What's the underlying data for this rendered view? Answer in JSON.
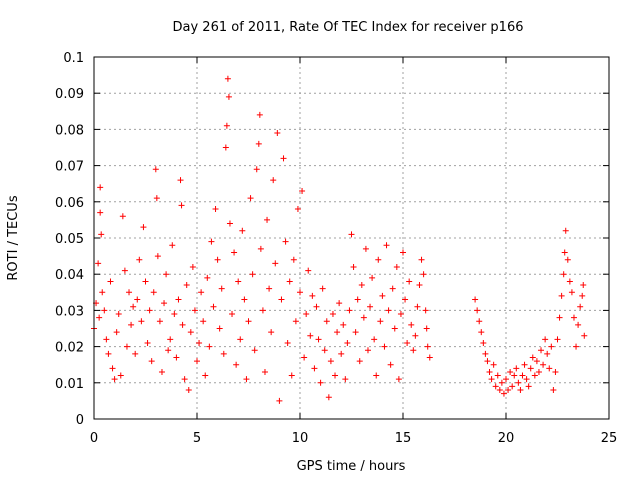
{
  "chart_data": {
    "type": "scatter",
    "title": "Day 261 of 2011, Rate Of TEC Index for receiver p166",
    "xlabel": "GPS time / hours",
    "ylabel": "ROTI / TECUs",
    "xlim": [
      0,
      25
    ],
    "ylim": [
      0,
      0.1
    ],
    "x_ticks": [
      "0",
      "5",
      "10",
      "15",
      "20",
      "25"
    ],
    "y_ticks": [
      "0",
      "0.01",
      "0.02",
      "0.03",
      "0.04",
      "0.05",
      "0.06",
      "0.07",
      "0.08",
      "0.09",
      "0.1"
    ],
    "grid": true,
    "marker": "+",
    "color": "#ff0000",
    "series": [
      {
        "points": [
          [
            0.0,
            0.025
          ],
          [
            0.1,
            0.032
          ],
          [
            0.2,
            0.043
          ],
          [
            0.25,
            0.028
          ],
          [
            0.3,
            0.064
          ],
          [
            0.3,
            0.057
          ],
          [
            0.35,
            0.051
          ],
          [
            0.4,
            0.035
          ],
          [
            0.5,
            0.03
          ],
          [
            0.6,
            0.022
          ],
          [
            0.7,
            0.018
          ],
          [
            0.8,
            0.038
          ],
          [
            0.9,
            0.014
          ],
          [
            1.0,
            0.011
          ],
          [
            1.1,
            0.024
          ],
          [
            1.2,
            0.029
          ],
          [
            1.3,
            0.012
          ],
          [
            1.4,
            0.056
          ],
          [
            1.5,
            0.041
          ],
          [
            1.6,
            0.02
          ],
          [
            1.7,
            0.035
          ],
          [
            1.8,
            0.026
          ],
          [
            1.9,
            0.031
          ],
          [
            2.0,
            0.018
          ],
          [
            2.1,
            0.033
          ],
          [
            2.2,
            0.044
          ],
          [
            2.3,
            0.027
          ],
          [
            2.4,
            0.053
          ],
          [
            2.5,
            0.038
          ],
          [
            2.6,
            0.021
          ],
          [
            2.7,
            0.03
          ],
          [
            2.8,
            0.016
          ],
          [
            2.9,
            0.035
          ],
          [
            3.0,
            0.069
          ],
          [
            3.05,
            0.061
          ],
          [
            3.1,
            0.045
          ],
          [
            3.2,
            0.027
          ],
          [
            3.3,
            0.013
          ],
          [
            3.4,
            0.032
          ],
          [
            3.5,
            0.04
          ],
          [
            3.6,
            0.019
          ],
          [
            3.7,
            0.022
          ],
          [
            3.8,
            0.048
          ],
          [
            3.9,
            0.029
          ],
          [
            4.0,
            0.017
          ],
          [
            4.1,
            0.033
          ],
          [
            4.2,
            0.066
          ],
          [
            4.25,
            0.059
          ],
          [
            4.3,
            0.026
          ],
          [
            4.4,
            0.011
          ],
          [
            4.5,
            0.037
          ],
          [
            4.6,
            0.008
          ],
          [
            4.7,
            0.024
          ],
          [
            4.8,
            0.042
          ],
          [
            4.9,
            0.03
          ],
          [
            5.0,
            0.016
          ],
          [
            5.1,
            0.021
          ],
          [
            5.2,
            0.035
          ],
          [
            5.3,
            0.027
          ],
          [
            5.4,
            0.012
          ],
          [
            5.5,
            0.039
          ],
          [
            5.6,
            0.02
          ],
          [
            5.7,
            0.049
          ],
          [
            5.8,
            0.031
          ],
          [
            5.9,
            0.058
          ],
          [
            6.0,
            0.044
          ],
          [
            6.1,
            0.025
          ],
          [
            6.2,
            0.036
          ],
          [
            6.3,
            0.018
          ],
          [
            6.4,
            0.075
          ],
          [
            6.45,
            0.081
          ],
          [
            6.5,
            0.094
          ],
          [
            6.55,
            0.089
          ],
          [
            6.6,
            0.054
          ],
          [
            6.7,
            0.029
          ],
          [
            6.8,
            0.046
          ],
          [
            6.9,
            0.015
          ],
          [
            7.0,
            0.038
          ],
          [
            7.1,
            0.022
          ],
          [
            7.2,
            0.052
          ],
          [
            7.3,
            0.033
          ],
          [
            7.4,
            0.011
          ],
          [
            7.5,
            0.027
          ],
          [
            7.6,
            0.061
          ],
          [
            7.7,
            0.04
          ],
          [
            7.8,
            0.019
          ],
          [
            7.9,
            0.069
          ],
          [
            8.0,
            0.076
          ],
          [
            8.05,
            0.084
          ],
          [
            8.1,
            0.047
          ],
          [
            8.2,
            0.03
          ],
          [
            8.3,
            0.013
          ],
          [
            8.4,
            0.055
          ],
          [
            8.5,
            0.036
          ],
          [
            8.6,
            0.024
          ],
          [
            8.7,
            0.066
          ],
          [
            8.8,
            0.043
          ],
          [
            8.9,
            0.079
          ],
          [
            9.0,
            0.005
          ],
          [
            9.1,
            0.033
          ],
          [
            9.2,
            0.072
          ],
          [
            9.3,
            0.049
          ],
          [
            9.4,
            0.021
          ],
          [
            9.5,
            0.038
          ],
          [
            9.6,
            0.012
          ],
          [
            9.7,
            0.044
          ],
          [
            9.8,
            0.027
          ],
          [
            9.9,
            0.058
          ],
          [
            10.0,
            0.035
          ],
          [
            10.1,
            0.063
          ],
          [
            10.2,
            0.017
          ],
          [
            10.3,
            0.029
          ],
          [
            10.4,
            0.041
          ],
          [
            10.5,
            0.023
          ],
          [
            10.6,
            0.034
          ],
          [
            10.7,
            0.014
          ],
          [
            10.8,
            0.031
          ],
          [
            10.9,
            0.022
          ],
          [
            11.0,
            0.01
          ],
          [
            11.1,
            0.036
          ],
          [
            11.2,
            0.019
          ],
          [
            11.3,
            0.027
          ],
          [
            11.4,
            0.006
          ],
          [
            11.5,
            0.016
          ],
          [
            11.6,
            0.029
          ],
          [
            11.7,
            0.012
          ],
          [
            11.8,
            0.024
          ],
          [
            11.9,
            0.032
          ],
          [
            12.0,
            0.018
          ],
          [
            12.1,
            0.026
          ],
          [
            12.2,
            0.011
          ],
          [
            12.3,
            0.021
          ],
          [
            12.4,
            0.03
          ],
          [
            12.5,
            0.051
          ],
          [
            12.6,
            0.042
          ],
          [
            12.7,
            0.024
          ],
          [
            12.8,
            0.033
          ],
          [
            12.9,
            0.016
          ],
          [
            13.0,
            0.037
          ],
          [
            13.1,
            0.028
          ],
          [
            13.2,
            0.047
          ],
          [
            13.3,
            0.019
          ],
          [
            13.4,
            0.031
          ],
          [
            13.5,
            0.039
          ],
          [
            13.6,
            0.022
          ],
          [
            13.7,
            0.012
          ],
          [
            13.8,
            0.044
          ],
          [
            13.9,
            0.027
          ],
          [
            14.0,
            0.034
          ],
          [
            14.1,
            0.02
          ],
          [
            14.2,
            0.048
          ],
          [
            14.3,
            0.03
          ],
          [
            14.4,
            0.015
          ],
          [
            14.5,
            0.036
          ],
          [
            14.6,
            0.025
          ],
          [
            14.7,
            0.042
          ],
          [
            14.8,
            0.011
          ],
          [
            14.9,
            0.029
          ],
          [
            15.0,
            0.046
          ],
          [
            15.1,
            0.033
          ],
          [
            15.2,
            0.021
          ],
          [
            15.3,
            0.038
          ],
          [
            15.4,
            0.026
          ],
          [
            15.5,
            0.019
          ],
          [
            15.6,
            0.023
          ],
          [
            15.7,
            0.031
          ],
          [
            15.8,
            0.037
          ],
          [
            15.9,
            0.044
          ],
          [
            16.0,
            0.04
          ],
          [
            16.1,
            0.03
          ],
          [
            16.15,
            0.025
          ],
          [
            16.2,
            0.02
          ],
          [
            16.3,
            0.017
          ],
          [
            18.5,
            0.033
          ],
          [
            18.6,
            0.03
          ],
          [
            18.7,
            0.027
          ],
          [
            18.8,
            0.024
          ],
          [
            18.9,
            0.021
          ],
          [
            19.0,
            0.018
          ],
          [
            19.1,
            0.016
          ],
          [
            19.2,
            0.013
          ],
          [
            19.3,
            0.011
          ],
          [
            19.4,
            0.015
          ],
          [
            19.5,
            0.009
          ],
          [
            19.6,
            0.012
          ],
          [
            19.7,
            0.008
          ],
          [
            19.8,
            0.01
          ],
          [
            19.9,
            0.007
          ],
          [
            20.0,
            0.011
          ],
          [
            20.1,
            0.008
          ],
          [
            20.2,
            0.013
          ],
          [
            20.3,
            0.009
          ],
          [
            20.4,
            0.012
          ],
          [
            20.5,
            0.014
          ],
          [
            20.6,
            0.01
          ],
          [
            20.7,
            0.008
          ],
          [
            20.8,
            0.012
          ],
          [
            20.9,
            0.015
          ],
          [
            21.0,
            0.011
          ],
          [
            21.1,
            0.009
          ],
          [
            21.2,
            0.014
          ],
          [
            21.3,
            0.017
          ],
          [
            21.4,
            0.012
          ],
          [
            21.5,
            0.016
          ],
          [
            21.6,
            0.013
          ],
          [
            21.7,
            0.019
          ],
          [
            21.8,
            0.015
          ],
          [
            21.9,
            0.022
          ],
          [
            22.0,
            0.018
          ],
          [
            22.1,
            0.014
          ],
          [
            22.2,
            0.02
          ],
          [
            22.3,
            0.008
          ],
          [
            22.4,
            0.013
          ],
          [
            22.5,
            0.022
          ],
          [
            22.6,
            0.028
          ],
          [
            22.7,
            0.034
          ],
          [
            22.8,
            0.04
          ],
          [
            22.85,
            0.046
          ],
          [
            22.9,
            0.052
          ],
          [
            23.0,
            0.044
          ],
          [
            23.1,
            0.038
          ],
          [
            23.2,
            0.035
          ],
          [
            23.3,
            0.028
          ],
          [
            23.4,
            0.02
          ],
          [
            23.5,
            0.026
          ],
          [
            23.6,
            0.031
          ],
          [
            23.7,
            0.034
          ],
          [
            23.75,
            0.037
          ],
          [
            23.8,
            0.023
          ]
        ]
      }
    ]
  }
}
